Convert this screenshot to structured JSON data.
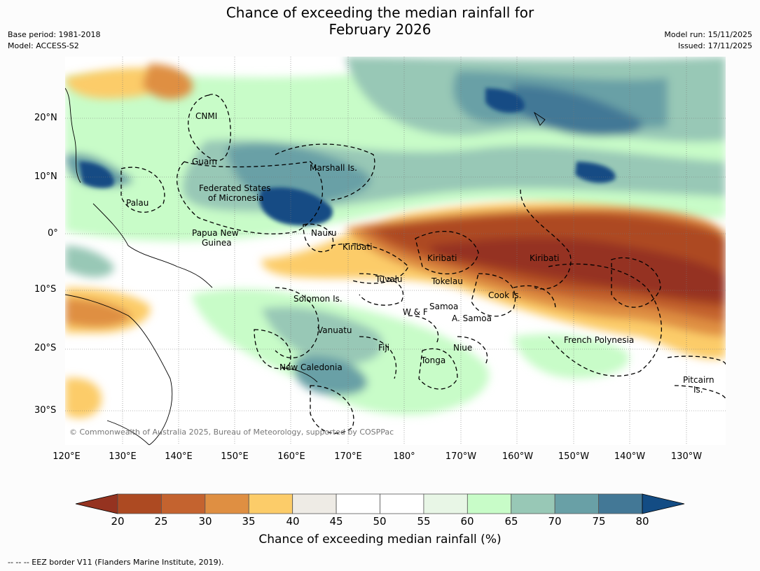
{
  "title_line1": "Chance of exceeding the median rainfall for",
  "title_line2": "February 2026",
  "base_period": "Base period: 1981-2018",
  "model": "Model: ACCESS-S2",
  "model_run": "Model run: 15/11/2025",
  "issued": "Issued: 17/11/2025",
  "lat_ticks": [
    "20°N",
    "10°N",
    "0°",
    "10°S",
    "20°S",
    "30°S"
  ],
  "lon_ticks": [
    "120°E",
    "130°E",
    "140°E",
    "150°E",
    "160°E",
    "170°E",
    "180°",
    "170°W",
    "160°W",
    "150°W",
    "140°W",
    "130°W"
  ],
  "regions": {
    "cnmi": "CNMI",
    "guam": "Guam",
    "marshall": "Marshall Is.",
    "fsm_1": "Federated States",
    "fsm_2": "of Micronesia",
    "palau": "Palau",
    "png_1": "Papua New",
    "png_2": "Guinea",
    "nauru": "Nauru",
    "kiribati_w": "Kiribati",
    "kiribati_c": "Kiribati",
    "kiribati_e": "Kiribati",
    "tuvalu": "Tuvalu",
    "tokelau": "Tokelau",
    "cook": "Cook Is.",
    "solomon": "Solomon Is.",
    "wf": "W & F",
    "samoa": "Samoa",
    "asamoa": "A. Samoa",
    "vanuatu": "Vanuatu",
    "fiji": "Fiji",
    "niue": "Niue",
    "tonga": "Tonga",
    "newcal": "New Caledonia",
    "frpoly": "French Polynesia",
    "pitcairn_1": "Pitcairn",
    "pitcairn_2": "Is."
  },
  "copyright": "© Commonwealth of Australia 2025, Bureau of Meteorology, supported by COSPPac",
  "colorbar": {
    "labels": [
      "20",
      "25",
      "30",
      "35",
      "40",
      "45",
      "50",
      "55",
      "60",
      "65",
      "70",
      "75",
      "80"
    ],
    "colors": [
      "#ad4a22",
      "#c4632f",
      "#df8f42",
      "#fccc69",
      "#eeebe5",
      "#ffffff",
      "#ffffff",
      "#e8f6e6",
      "#c8fcc8",
      "#98c8b6",
      "#69a0a6",
      "#437896"
    ],
    "low_extend_color": "#953320",
    "high_extend_color": "#134c84"
  },
  "colorbar_title": "Chance of exceeding median rainfall (%)",
  "footer": "--  --  -- EEZ border V11 (Flanders Marine Institute, 2019)."
}
